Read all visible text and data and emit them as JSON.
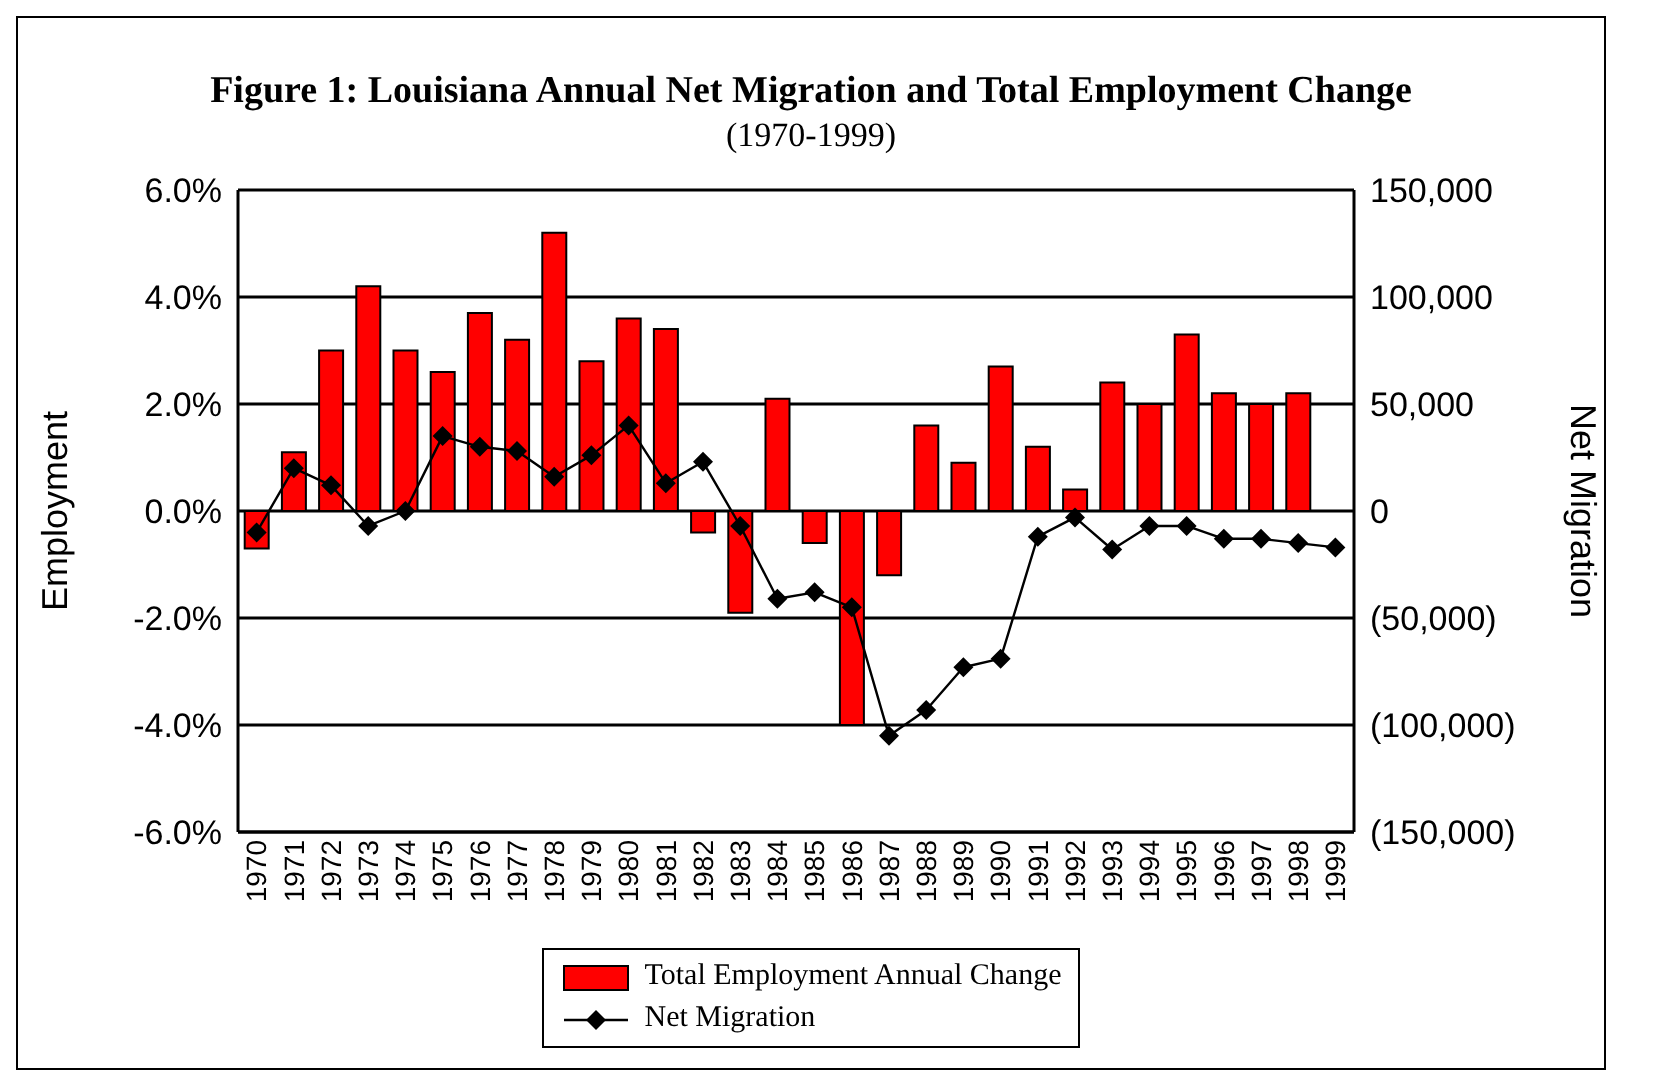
{
  "chart_data": {
    "type": "bar",
    "title": "Figure 1: Louisiana Annual Net Migration and Total Employment Change",
    "subtitle": "(1970-1999)",
    "ylabel": "Employment",
    "y2label": "Net Migration",
    "categories": [
      "1970",
      "1971",
      "1972",
      "1973",
      "1974",
      "1975",
      "1976",
      "1977",
      "1978",
      "1979",
      "1980",
      "1981",
      "1982",
      "1983",
      "1984",
      "1985",
      "1986",
      "1987",
      "1988",
      "1989",
      "1990",
      "1991",
      "1992",
      "1993",
      "1994",
      "1995",
      "1996",
      "1997",
      "1998",
      "1999"
    ],
    "series": [
      {
        "name": "Total Employment Annual Change",
        "color": "#ff0000",
        "values": [
          -0.7,
          1.1,
          3.0,
          4.2,
          3.0,
          2.6,
          3.7,
          3.2,
          5.2,
          2.8,
          3.6,
          3.4,
          -0.4,
          -1.9,
          2.1,
          -0.6,
          -4.0,
          -1.2,
          1.6,
          0.9,
          2.7,
          1.2,
          0.4,
          2.4,
          2.0,
          3.3,
          2.2,
          2.0,
          2.2,
          null
        ]
      },
      {
        "name": "Net Migration",
        "type": "line",
        "axis": "y2",
        "color": "#000000",
        "marker": "diamond",
        "values": [
          -10000,
          20000,
          12000,
          -7000,
          0,
          35000,
          30000,
          28000,
          16000,
          26000,
          40000,
          13000,
          23000,
          -7000,
          -41000,
          -38000,
          -45000,
          -105000,
          -93000,
          -73000,
          -69000,
          -12000,
          -3000,
          -18000,
          -7000,
          -7000,
          -13000,
          -13000,
          -15000,
          -17000
        ]
      }
    ],
    "ylim": [
      -6,
      6
    ],
    "yticks": [
      {
        "value": -6,
        "label": "-6.0%"
      },
      {
        "value": -4,
        "label": "-4.0%"
      },
      {
        "value": -2,
        "label": "-2.0%"
      },
      {
        "value": 0,
        "label": "0.0%"
      },
      {
        "value": 2,
        "label": "2.0%"
      },
      {
        "value": 4,
        "label": "4.0%"
      },
      {
        "value": 6,
        "label": "6.0%"
      }
    ],
    "y2lim": [
      -150000,
      150000
    ],
    "y2ticks": [
      {
        "value": -150000,
        "label": "(150,000)"
      },
      {
        "value": -100000,
        "label": "(100,000)"
      },
      {
        "value": -50000,
        "label": "(50,000)"
      },
      {
        "value": 0,
        "label": "0"
      },
      {
        "value": 50000,
        "label": "50,000"
      },
      {
        "value": 100000,
        "label": "100,000"
      },
      {
        "value": 150000,
        "label": "150,000"
      }
    ],
    "grid": "y",
    "legend": "bottom"
  }
}
